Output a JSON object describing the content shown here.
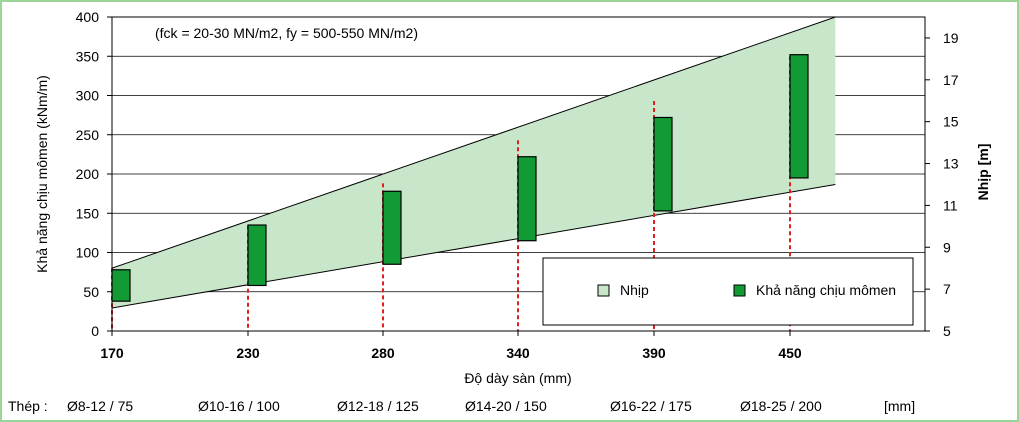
{
  "chart_data": {
    "type": "bar",
    "annotation": "(fck = 20-30 MN/m2, fy = 500-550 MN/m2)",
    "xlabel": "Độ dày sàn (mm)",
    "ylabel": "Khả năng chịu mômen (kNm/m)",
    "y2label": "Nhịp  [m]",
    "xlim": [
      170,
      470
    ],
    "ylim": [
      0,
      400
    ],
    "y2lim": [
      5,
      20
    ],
    "x_ticks": [
      170,
      230,
      280,
      340,
      390,
      450
    ],
    "y_ticks": [
      0,
      50,
      100,
      150,
      200,
      250,
      300,
      350,
      400
    ],
    "y2_ticks": [
      5,
      7,
      9,
      11,
      13,
      15,
      17,
      19
    ],
    "grid": true,
    "legend_position": "bottom-right",
    "series": [
      {
        "name": "Nhịp",
        "kind": "band",
        "color": "#c8e6c9",
        "x": [
          170,
          470
        ],
        "lower": [
          6.1,
          12.0
        ],
        "upper": [
          8.0,
          20.0
        ]
      },
      {
        "name": "Khả năng chịu mômen",
        "kind": "range-bar",
        "color": "#129a35",
        "x": [
          170,
          230,
          280,
          340,
          390,
          450
        ],
        "low": [
          38,
          58,
          85,
          115,
          153,
          195
        ],
        "high": [
          78,
          135,
          178,
          222,
          272,
          352
        ]
      }
    ],
    "guide_lines": {
      "x": [
        170,
        230,
        280,
        340,
        390,
        450
      ],
      "top": [
        80,
        134,
        188,
        243,
        293,
        350
      ],
      "color": "#e02020"
    }
  },
  "steel": {
    "label": "Thép :",
    "items": [
      "Ø8-12 / 75",
      "Ø10-16 / 100",
      "Ø12-18 / 125",
      "Ø14-20 / 150",
      "Ø16-22 / 175",
      "Ø18-25 / 200"
    ],
    "unit": "[mm]"
  }
}
